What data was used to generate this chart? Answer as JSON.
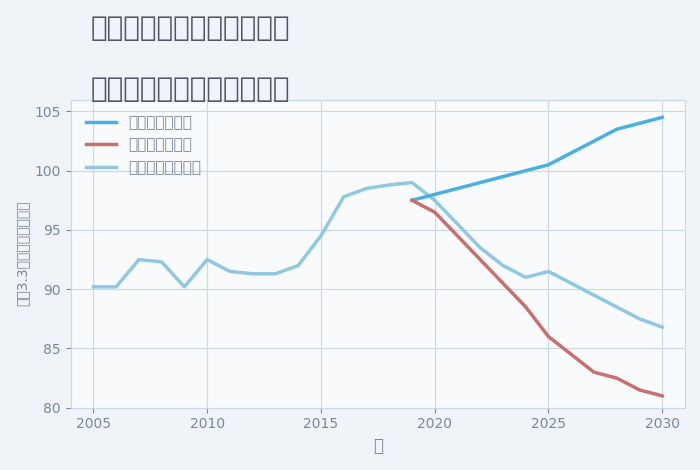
{
  "title_line1": "岐阜県飛騨市宮川町杉原の",
  "title_line2": "中古マンションの価格推移",
  "xlabel": "年",
  "ylabel": "平（3.3㎡）単価（万円）",
  "ylim": [
    80,
    106
  ],
  "xlim": [
    2004,
    2031
  ],
  "yticks": [
    80,
    85,
    90,
    95,
    100,
    105
  ],
  "xticks": [
    2005,
    2010,
    2015,
    2020,
    2025,
    2030
  ],
  "background_color": "#f0f4f8",
  "plot_bg_color": "#f8fafc",
  "grid_color": "#c8d8e8",
  "good_scenario": {
    "label": "グッドシナリオ",
    "color": "#4ab0e0",
    "years": [
      2019,
      2020,
      2021,
      2022,
      2023,
      2024,
      2025,
      2026,
      2027,
      2028,
      2029,
      2030
    ],
    "values": [
      97.5,
      98.0,
      98.5,
      99.0,
      99.5,
      100.0,
      100.5,
      101.5,
      102.5,
      103.5,
      104.0,
      104.5
    ]
  },
  "bad_scenario": {
    "label": "バッドシナリオ",
    "color": "#c87070",
    "years": [
      2019,
      2020,
      2021,
      2022,
      2023,
      2024,
      2025,
      2026,
      2027,
      2028,
      2029,
      2030
    ],
    "values": [
      97.5,
      96.5,
      94.5,
      92.5,
      90.5,
      88.5,
      86.0,
      84.5,
      83.0,
      82.5,
      81.5,
      81.0
    ]
  },
  "normal_scenario": {
    "label": "ノーマルシナリオ",
    "color": "#90c8e0",
    "years": [
      2005,
      2006,
      2007,
      2008,
      2009,
      2010,
      2011,
      2012,
      2013,
      2014,
      2015,
      2016,
      2017,
      2018,
      2019,
      2020,
      2021,
      2022,
      2023,
      2024,
      2025,
      2026,
      2027,
      2028,
      2029,
      2030
    ],
    "values": [
      90.2,
      90.2,
      92.5,
      92.3,
      90.2,
      92.5,
      91.5,
      91.3,
      91.3,
      92.0,
      94.5,
      97.8,
      98.5,
      98.8,
      99.0,
      97.5,
      95.5,
      93.5,
      92.0,
      91.0,
      91.5,
      90.5,
      89.5,
      88.5,
      87.5,
      86.8
    ]
  },
  "title_color": "#555566",
  "title_fontsize": 20,
  "axis_label_color": "#778899",
  "tick_color": "#778899",
  "legend_fontsize": 11
}
